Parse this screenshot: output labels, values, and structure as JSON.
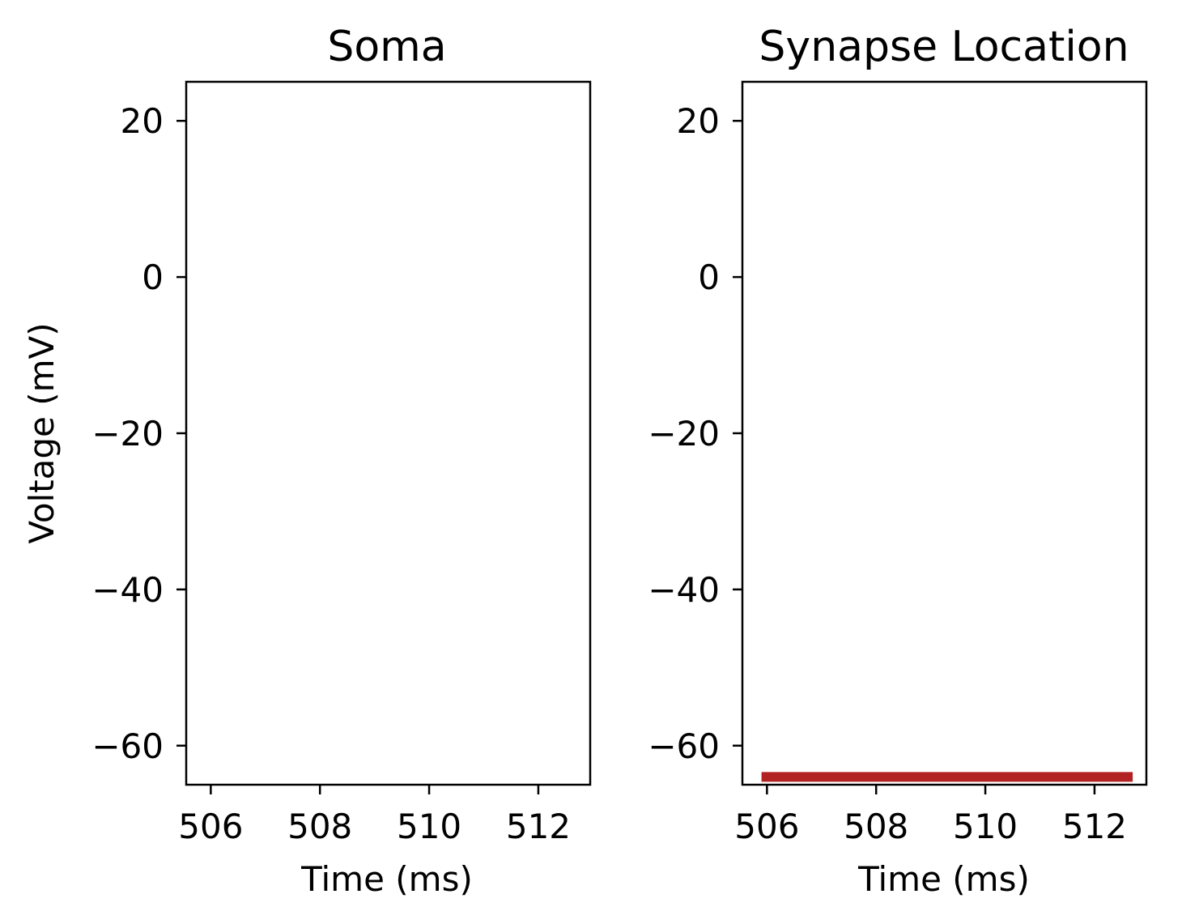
{
  "chart_data": [
    {
      "type": "line",
      "title": "Soma",
      "xlabel": "Time (ms)",
      "ylabel": "Voltage (mV)",
      "xlim": [
        505.55,
        512.95
      ],
      "ylim": [
        -65,
        25
      ],
      "xticks": [
        506,
        508,
        510,
        512
      ],
      "yticks": [
        20,
        0,
        -20,
        -40,
        -60
      ],
      "xtick_labels": [
        "506",
        "508",
        "510",
        "512"
      ],
      "ytick_labels": [
        "20",
        "0",
        "−20",
        "−40",
        "−60"
      ],
      "grid": false,
      "series": []
    },
    {
      "type": "line",
      "title": "Synapse Location",
      "xlabel": "Time (ms)",
      "ylabel": "",
      "xlim": [
        505.55,
        512.95
      ],
      "ylim": [
        -65,
        25
      ],
      "xticks": [
        506,
        508,
        510,
        512
      ],
      "yticks": [
        20,
        0,
        -20,
        -40,
        -60
      ],
      "xtick_labels": [
        "506",
        "508",
        "510",
        "512"
      ],
      "ytick_labels": [
        "20",
        "0",
        "−20",
        "−40",
        "−60"
      ],
      "grid": false,
      "series": [
        {
          "color": "#b22222",
          "x": [
            505.9,
            512.7
          ],
          "y": [
            -64.0,
            -64.0
          ]
        }
      ]
    }
  ]
}
